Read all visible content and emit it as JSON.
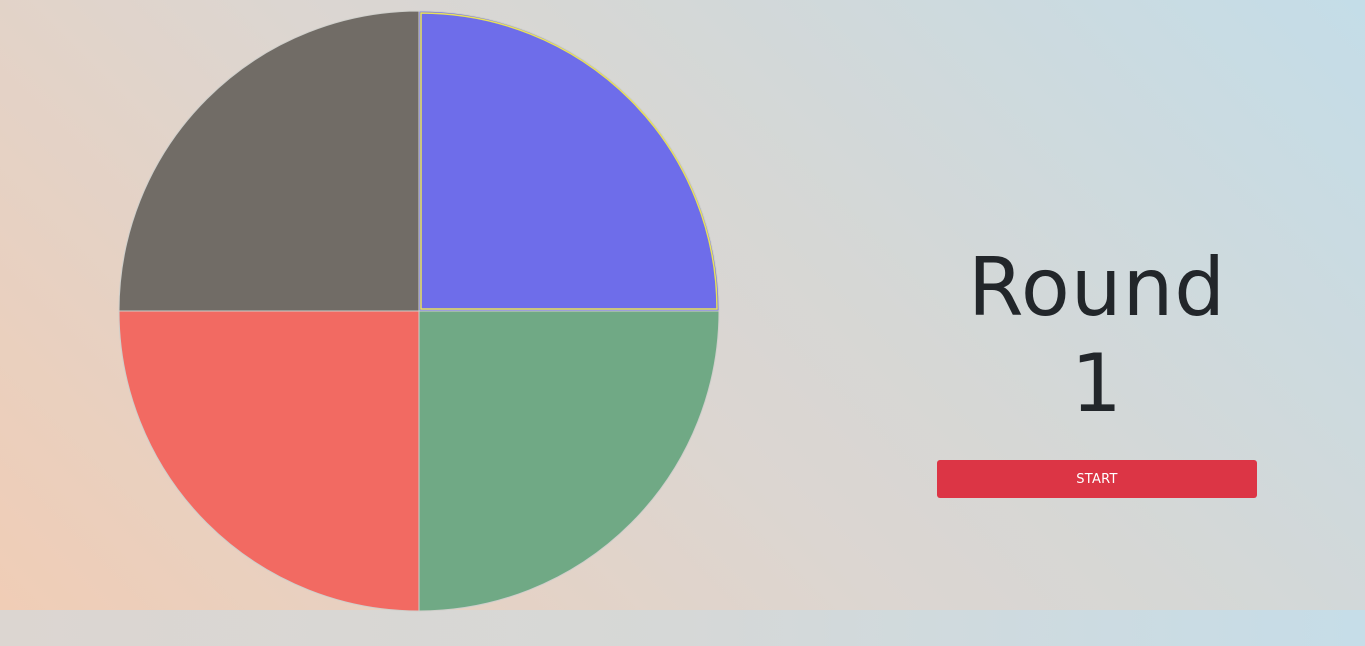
{
  "game": {
    "round_title": "Round 1",
    "start_label": "START"
  },
  "board": {
    "quadrants": [
      {
        "id": "top-right",
        "color": "#6e6dea",
        "highlight": "#e8e15a",
        "highlighted": true
      },
      {
        "id": "top-left",
        "color": "#716c66",
        "highlighted": false
      },
      {
        "id": "bottom-left",
        "color": "#f26a62",
        "highlighted": false
      },
      {
        "id": "bottom-right",
        "color": "#70a985",
        "highlighted": false
      }
    ]
  },
  "colors": {
    "title_text": "#22262a",
    "start_button": "#dc3545",
    "start_text": "#ffffff"
  }
}
